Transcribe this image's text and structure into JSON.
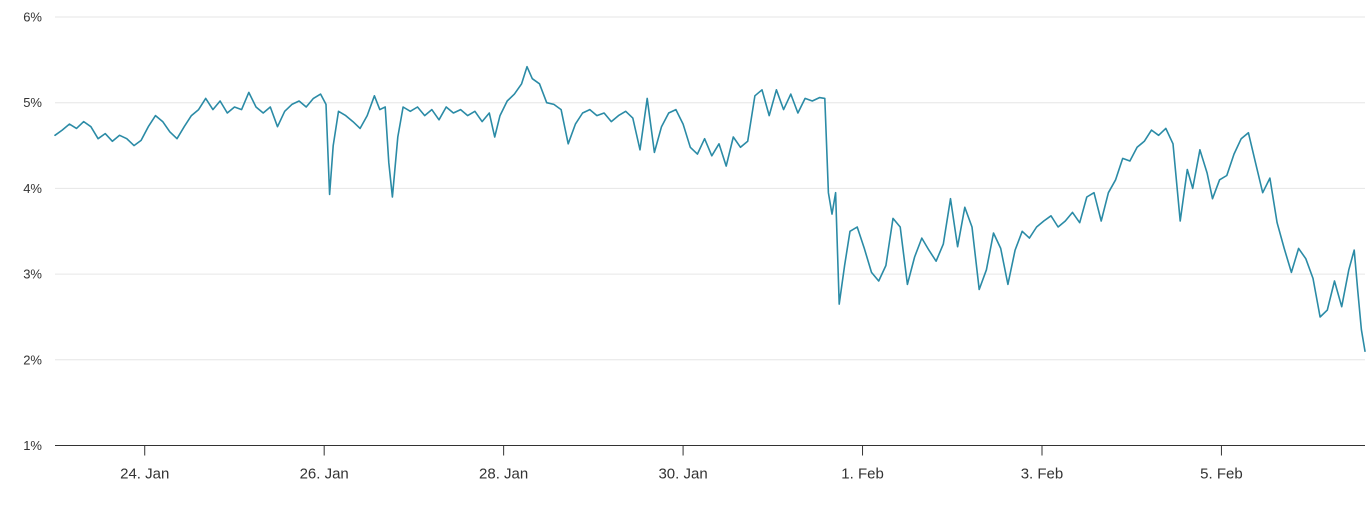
{
  "chart_data": {
    "type": "line",
    "title": "",
    "xlabel": "",
    "ylabel": "",
    "grid": true,
    "legend": "none",
    "line_color": "#2b8ba6",
    "grid_color": "#e6e6e6",
    "axis_color": "#333333",
    "label_color": "#333333",
    "x_unit": "days since 23 Jan 00:00",
    "x_range": [
      0,
      14.6
    ],
    "y_range": [
      1,
      6
    ],
    "y_ticks": [
      {
        "value": 6,
        "label": "6%"
      },
      {
        "value": 5,
        "label": "5%"
      },
      {
        "value": 4,
        "label": "4%"
      },
      {
        "value": 3,
        "label": "3%"
      },
      {
        "value": 2,
        "label": "2%"
      },
      {
        "value": 1,
        "label": "1%"
      }
    ],
    "x_ticks": [
      {
        "value": 1,
        "label": "24. Jan"
      },
      {
        "value": 3,
        "label": "26. Jan"
      },
      {
        "value": 5,
        "label": "28. Jan"
      },
      {
        "value": 7,
        "label": "30. Jan"
      },
      {
        "value": 9,
        "label": "1. Feb"
      },
      {
        "value": 11,
        "label": "3. Feb"
      },
      {
        "value": 13,
        "label": "5. Feb"
      }
    ],
    "points": [
      [
        0.0,
        4.62
      ],
      [
        0.08,
        4.68
      ],
      [
        0.16,
        4.75
      ],
      [
        0.24,
        4.7
      ],
      [
        0.32,
        4.78
      ],
      [
        0.4,
        4.72
      ],
      [
        0.48,
        4.58
      ],
      [
        0.56,
        4.64
      ],
      [
        0.64,
        4.55
      ],
      [
        0.72,
        4.62
      ],
      [
        0.8,
        4.58
      ],
      [
        0.88,
        4.5
      ],
      [
        0.96,
        4.56
      ],
      [
        1.04,
        4.72
      ],
      [
        1.12,
        4.85
      ],
      [
        1.2,
        4.78
      ],
      [
        1.28,
        4.66
      ],
      [
        1.36,
        4.58
      ],
      [
        1.44,
        4.72
      ],
      [
        1.52,
        4.85
      ],
      [
        1.6,
        4.92
      ],
      [
        1.68,
        5.05
      ],
      [
        1.76,
        4.92
      ],
      [
        1.84,
        5.02
      ],
      [
        1.92,
        4.88
      ],
      [
        2.0,
        4.95
      ],
      [
        2.08,
        4.92
      ],
      [
        2.16,
        5.12
      ],
      [
        2.24,
        4.95
      ],
      [
        2.32,
        4.88
      ],
      [
        2.4,
        4.95
      ],
      [
        2.48,
        4.72
      ],
      [
        2.56,
        4.9
      ],
      [
        2.64,
        4.98
      ],
      [
        2.72,
        5.02
      ],
      [
        2.8,
        4.95
      ],
      [
        2.88,
        5.05
      ],
      [
        2.96,
        5.1
      ],
      [
        3.02,
        4.98
      ],
      [
        3.06,
        3.93
      ],
      [
        3.1,
        4.5
      ],
      [
        3.16,
        4.9
      ],
      [
        3.24,
        4.85
      ],
      [
        3.32,
        4.78
      ],
      [
        3.4,
        4.7
      ],
      [
        3.48,
        4.85
      ],
      [
        3.56,
        5.08
      ],
      [
        3.62,
        4.92
      ],
      [
        3.68,
        4.95
      ],
      [
        3.72,
        4.3
      ],
      [
        3.76,
        3.9
      ],
      [
        3.82,
        4.6
      ],
      [
        3.88,
        4.95
      ],
      [
        3.96,
        4.9
      ],
      [
        4.04,
        4.95
      ],
      [
        4.12,
        4.85
      ],
      [
        4.2,
        4.92
      ],
      [
        4.28,
        4.8
      ],
      [
        4.36,
        4.95
      ],
      [
        4.44,
        4.88
      ],
      [
        4.52,
        4.92
      ],
      [
        4.6,
        4.85
      ],
      [
        4.68,
        4.9
      ],
      [
        4.76,
        4.78
      ],
      [
        4.84,
        4.88
      ],
      [
        4.9,
        4.6
      ],
      [
        4.96,
        4.85
      ],
      [
        5.04,
        5.02
      ],
      [
        5.12,
        5.1
      ],
      [
        5.2,
        5.22
      ],
      [
        5.26,
        5.42
      ],
      [
        5.32,
        5.28
      ],
      [
        5.4,
        5.22
      ],
      [
        5.48,
        5.0
      ],
      [
        5.56,
        4.98
      ],
      [
        5.64,
        4.92
      ],
      [
        5.72,
        4.52
      ],
      [
        5.8,
        4.75
      ],
      [
        5.88,
        4.88
      ],
      [
        5.96,
        4.92
      ],
      [
        6.04,
        4.85
      ],
      [
        6.12,
        4.88
      ],
      [
        6.2,
        4.78
      ],
      [
        6.28,
        4.85
      ],
      [
        6.36,
        4.9
      ],
      [
        6.44,
        4.82
      ],
      [
        6.52,
        4.45
      ],
      [
        6.6,
        5.05
      ],
      [
        6.68,
        4.42
      ],
      [
        6.76,
        4.72
      ],
      [
        6.84,
        4.88
      ],
      [
        6.92,
        4.92
      ],
      [
        7.0,
        4.75
      ],
      [
        7.08,
        4.48
      ],
      [
        7.16,
        4.4
      ],
      [
        7.24,
        4.58
      ],
      [
        7.32,
        4.38
      ],
      [
        7.4,
        4.52
      ],
      [
        7.48,
        4.26
      ],
      [
        7.56,
        4.6
      ],
      [
        7.64,
        4.48
      ],
      [
        7.72,
        4.55
      ],
      [
        7.8,
        5.08
      ],
      [
        7.88,
        5.15
      ],
      [
        7.96,
        4.85
      ],
      [
        8.04,
        5.15
      ],
      [
        8.12,
        4.92
      ],
      [
        8.2,
        5.1
      ],
      [
        8.28,
        4.88
      ],
      [
        8.36,
        5.05
      ],
      [
        8.44,
        5.02
      ],
      [
        8.52,
        5.06
      ],
      [
        8.58,
        5.05
      ],
      [
        8.62,
        3.95
      ],
      [
        8.66,
        3.7
      ],
      [
        8.7,
        3.95
      ],
      [
        8.74,
        2.65
      ],
      [
        8.8,
        3.1
      ],
      [
        8.86,
        3.5
      ],
      [
        8.94,
        3.55
      ],
      [
        9.02,
        3.3
      ],
      [
        9.1,
        3.02
      ],
      [
        9.18,
        2.92
      ],
      [
        9.26,
        3.1
      ],
      [
        9.34,
        3.65
      ],
      [
        9.42,
        3.55
      ],
      [
        9.5,
        2.88
      ],
      [
        9.58,
        3.2
      ],
      [
        9.66,
        3.42
      ],
      [
        9.74,
        3.28
      ],
      [
        9.82,
        3.15
      ],
      [
        9.9,
        3.35
      ],
      [
        9.98,
        3.88
      ],
      [
        10.06,
        3.32
      ],
      [
        10.14,
        3.78
      ],
      [
        10.22,
        3.55
      ],
      [
        10.3,
        2.82
      ],
      [
        10.38,
        3.05
      ],
      [
        10.46,
        3.48
      ],
      [
        10.54,
        3.3
      ],
      [
        10.62,
        2.88
      ],
      [
        10.7,
        3.28
      ],
      [
        10.78,
        3.5
      ],
      [
        10.86,
        3.42
      ],
      [
        10.94,
        3.55
      ],
      [
        11.02,
        3.62
      ],
      [
        11.1,
        3.68
      ],
      [
        11.18,
        3.55
      ],
      [
        11.26,
        3.62
      ],
      [
        11.34,
        3.72
      ],
      [
        11.42,
        3.6
      ],
      [
        11.5,
        3.9
      ],
      [
        11.58,
        3.95
      ],
      [
        11.66,
        3.62
      ],
      [
        11.74,
        3.95
      ],
      [
        11.82,
        4.1
      ],
      [
        11.9,
        4.35
      ],
      [
        11.98,
        4.32
      ],
      [
        12.06,
        4.48
      ],
      [
        12.14,
        4.55
      ],
      [
        12.22,
        4.68
      ],
      [
        12.3,
        4.62
      ],
      [
        12.38,
        4.7
      ],
      [
        12.46,
        4.52
      ],
      [
        12.54,
        3.62
      ],
      [
        12.62,
        4.22
      ],
      [
        12.68,
        4.0
      ],
      [
        12.76,
        4.45
      ],
      [
        12.84,
        4.18
      ],
      [
        12.9,
        3.88
      ],
      [
        12.98,
        4.1
      ],
      [
        13.06,
        4.15
      ],
      [
        13.14,
        4.4
      ],
      [
        13.22,
        4.58
      ],
      [
        13.3,
        4.65
      ],
      [
        13.38,
        4.3
      ],
      [
        13.46,
        3.95
      ],
      [
        13.54,
        4.12
      ],
      [
        13.62,
        3.6
      ],
      [
        13.7,
        3.3
      ],
      [
        13.78,
        3.02
      ],
      [
        13.86,
        3.3
      ],
      [
        13.94,
        3.18
      ],
      [
        14.02,
        2.95
      ],
      [
        14.1,
        2.5
      ],
      [
        14.18,
        2.58
      ],
      [
        14.26,
        2.92
      ],
      [
        14.34,
        2.62
      ],
      [
        14.42,
        3.05
      ],
      [
        14.48,
        3.28
      ],
      [
        14.52,
        2.8
      ],
      [
        14.56,
        2.35
      ],
      [
        14.6,
        2.1
      ]
    ]
  }
}
